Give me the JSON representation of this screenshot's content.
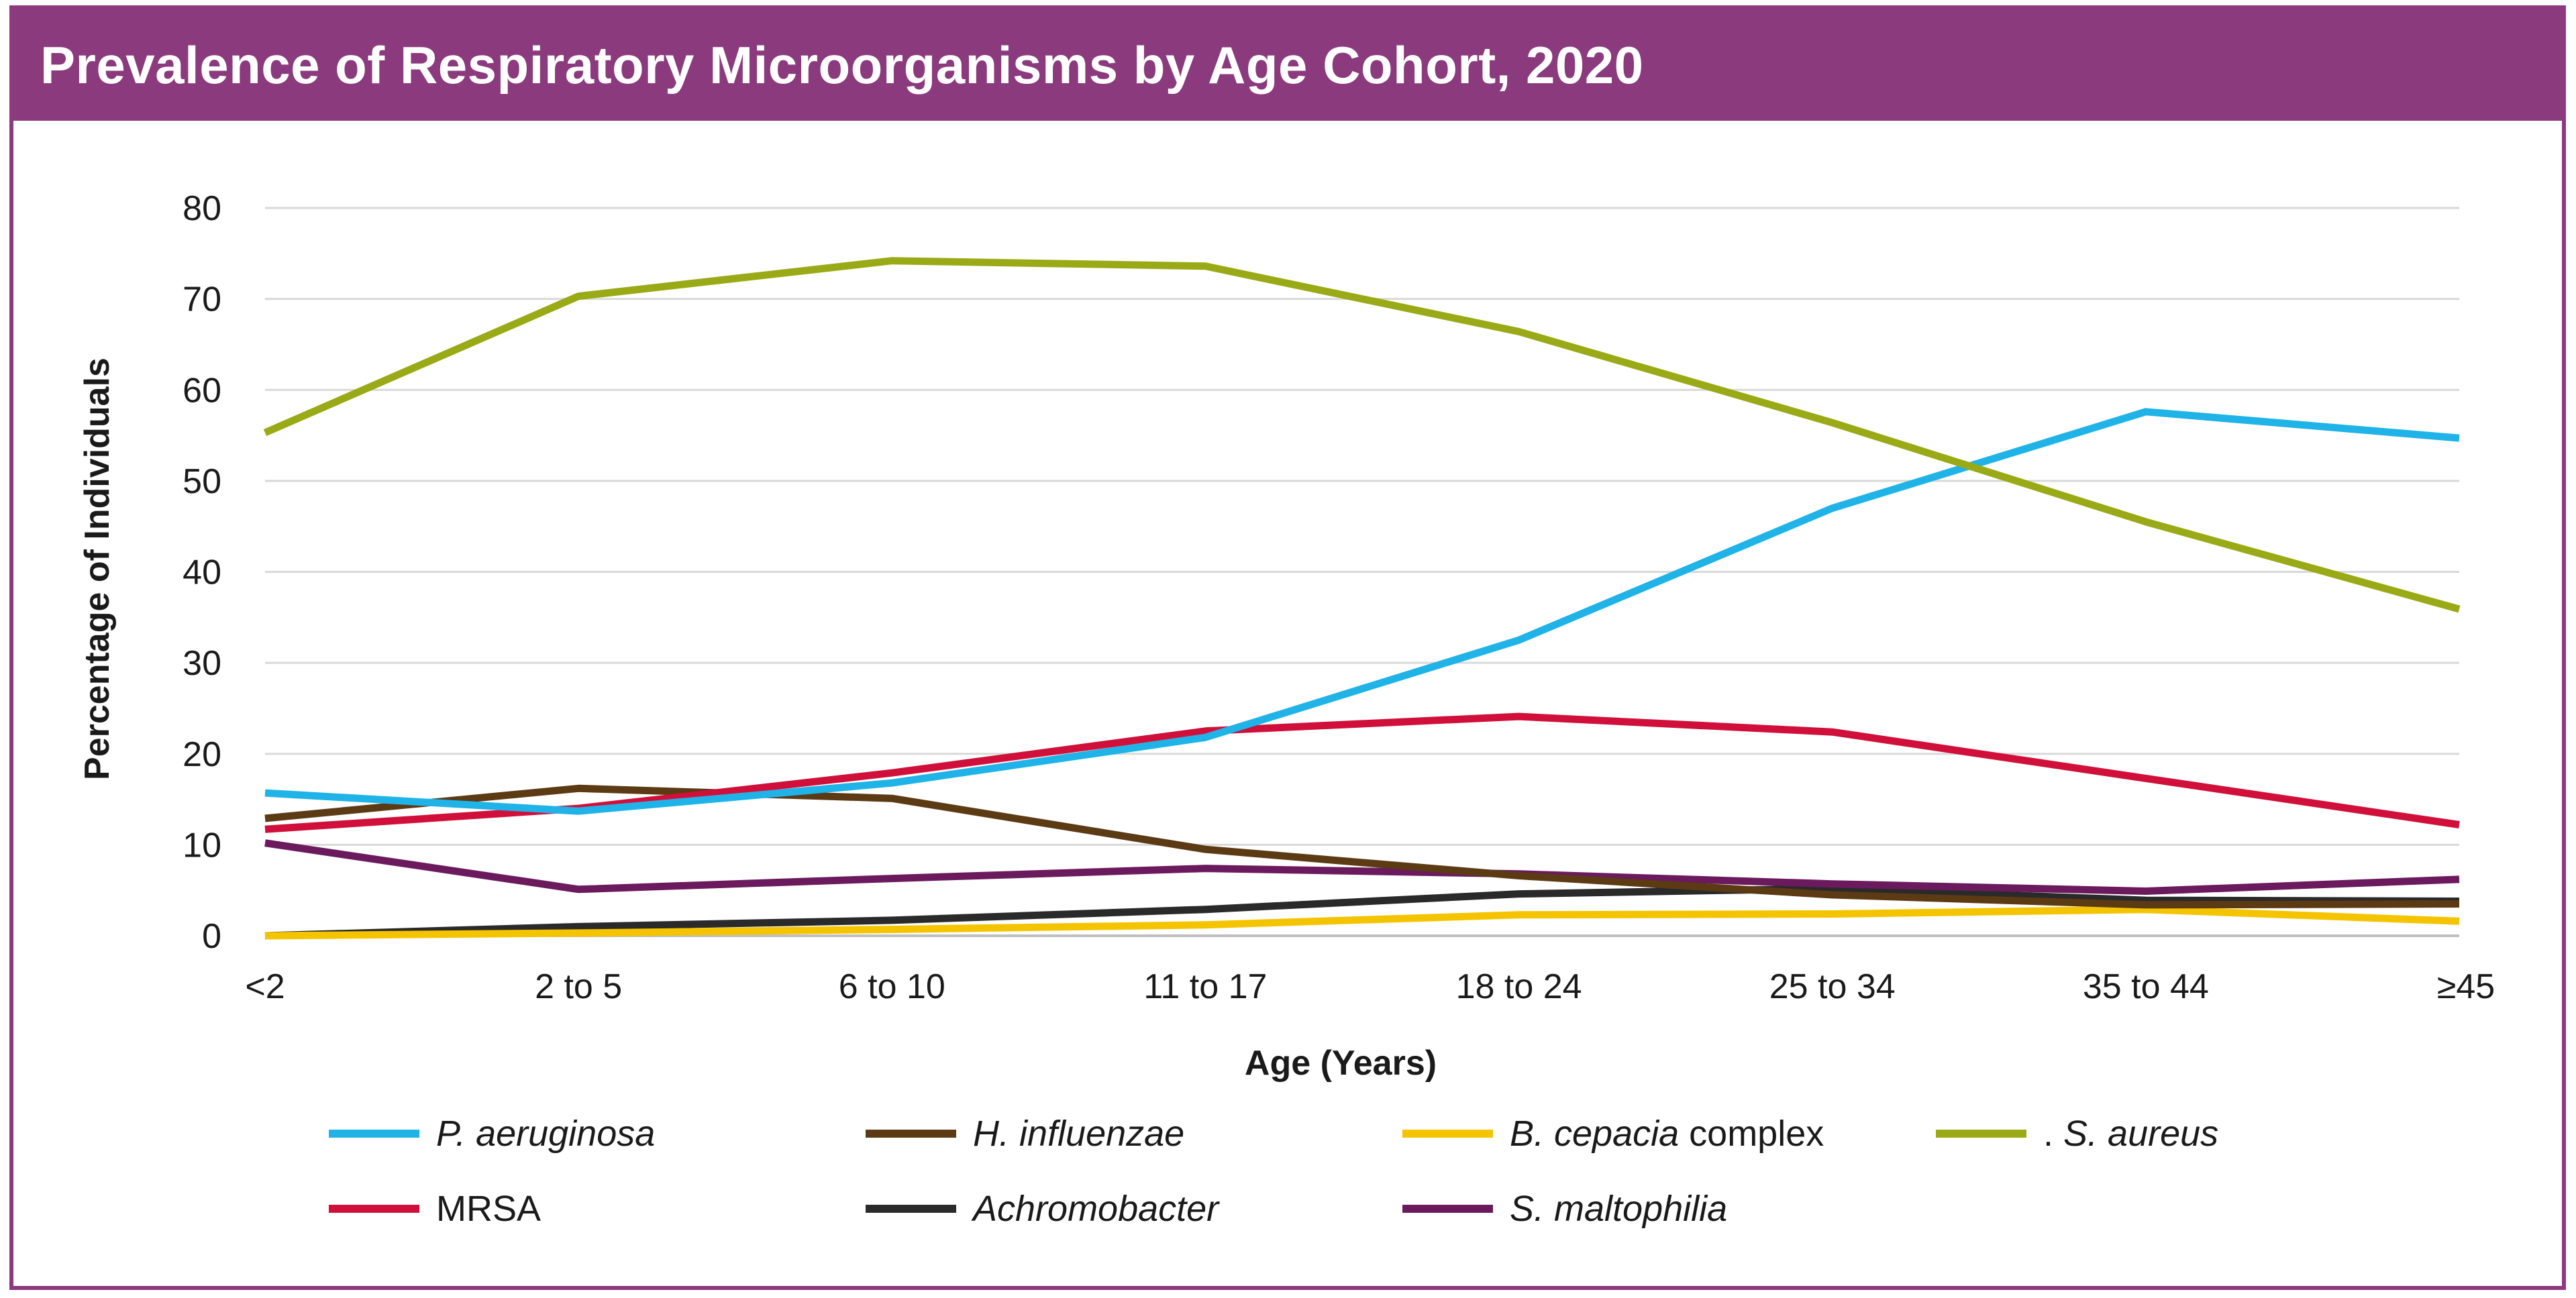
{
  "chart_data": {
    "type": "line",
    "title": "Prevalence of Respiratory Microorganisms by Age Cohort, 2020",
    "xlabel": "Age (Years)",
    "ylabel": "Percentage of Individuals",
    "ylim": [
      0,
      80
    ],
    "yticks": [
      "0",
      "10",
      "20",
      "30",
      "40",
      "50",
      "60",
      "70",
      "80"
    ],
    "grid": true,
    "legend_position": "bottom",
    "categories": [
      "<2",
      "2 to 5",
      "6 to 10",
      "11 to 17",
      "18 to 24",
      "25 to 34",
      "35 to 44",
      "≥45"
    ],
    "series": [
      {
        "name": "P. aeruginosa",
        "legend_italic": "P. aeruginosa",
        "legend_plain": "",
        "color": "#1fb3e8",
        "values": [
          15.7,
          13.7,
          16.8,
          21.8,
          32.5,
          47.0,
          57.6,
          54.7
        ]
      },
      {
        "name": "H. influenzae",
        "legend_italic": "H. influenzae",
        "legend_plain": "",
        "color": "#5c3a14",
        "values": [
          12.9,
          16.2,
          15.1,
          9.5,
          6.6,
          4.5,
          3.4,
          3.5
        ]
      },
      {
        "name": "B. cepacia complex",
        "legend_italic": "B. cepacia",
        "legend_plain": " complex",
        "color": "#f5c400",
        "values": [
          0.0,
          0.3,
          0.7,
          1.2,
          2.3,
          2.4,
          2.9,
          1.6
        ]
      },
      {
        "name": ". S. aureus",
        "legend_italic": "S. aureus",
        "legend_plain": ". ",
        "color": "#9aaa16",
        "values": [
          55.3,
          70.3,
          74.2,
          73.6,
          66.4,
          56.4,
          45.5,
          35.9
        ]
      },
      {
        "name": "MRSA",
        "legend_italic": "",
        "legend_plain": "MRSA",
        "color": "#d0103a",
        "values": [
          11.7,
          14.0,
          17.9,
          22.5,
          24.1,
          22.4,
          17.3,
          12.2
        ]
      },
      {
        "name": "Achromobacter",
        "legend_italic": "Achromobacter",
        "legend_plain": "",
        "color": "#2a2a2a",
        "values": [
          0.0,
          1.0,
          1.7,
          2.9,
          4.6,
          5.2,
          3.9,
          3.8
        ]
      },
      {
        "name": "S. maltophilia",
        "legend_italic": "S. maltophilia",
        "legend_plain": "",
        "color": "#6b1a5e",
        "values": [
          10.2,
          5.1,
          6.3,
          7.4,
          6.8,
          5.7,
          4.9,
          6.2
        ]
      }
    ]
  },
  "colors": {
    "brand": "#8c3a7e",
    "gridline": "#d9d9d9"
  }
}
